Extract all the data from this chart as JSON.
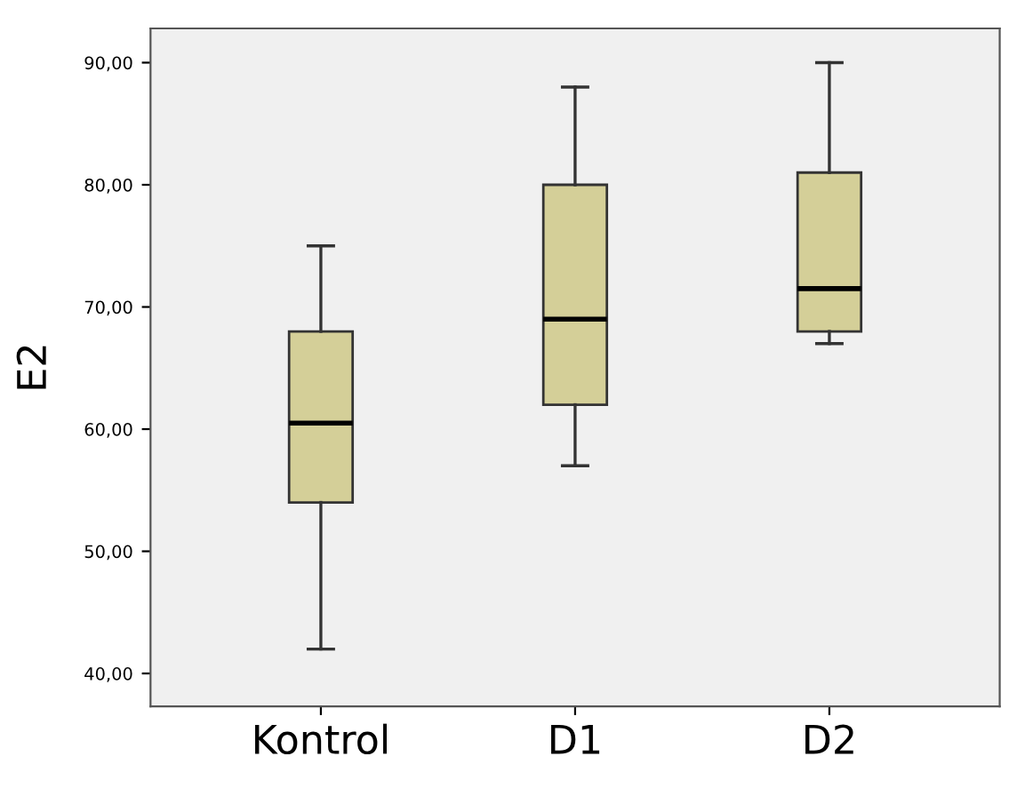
{
  "chart_data": {
    "type": "box",
    "ylabel": "E2",
    "categories": [
      "Kontrol",
      "D1",
      "D2"
    ],
    "boxes": [
      {
        "low": 42,
        "q1": 54,
        "median": 60.5,
        "q3": 68,
        "high": 75
      },
      {
        "low": 57,
        "q1": 62,
        "median": 69,
        "q3": 80,
        "high": 88
      },
      {
        "low": 67,
        "q1": 68,
        "median": 71.5,
        "q3": 81,
        "high": 90
      }
    ],
    "color": "#d4cf98",
    "ylim": [
      37.3,
      92.8
    ],
    "yticks": [
      {
        "value": 40,
        "label": "40,00"
      },
      {
        "value": 50,
        "label": "50,00"
      },
      {
        "value": 60,
        "label": "60,00"
      },
      {
        "value": 70,
        "label": "70,00"
      },
      {
        "value": 80,
        "label": "80,00"
      },
      {
        "value": 90,
        "label": "90,00"
      }
    ],
    "grid": false
  }
}
